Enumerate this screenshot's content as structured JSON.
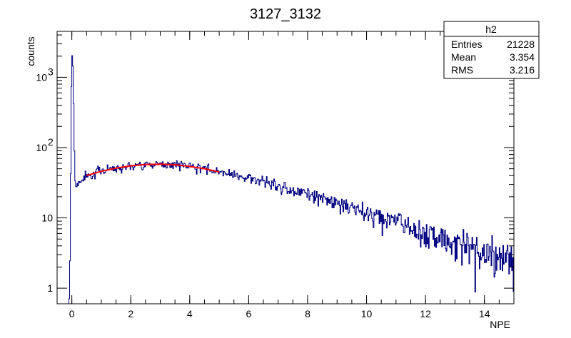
{
  "chart_data": {
    "type": "line",
    "title": "3127_3132",
    "xlabel": "NPE",
    "ylabel": "counts",
    "xlim": [
      -0.5,
      15.0
    ],
    "ylim": [
      0.6,
      4500
    ],
    "yscale": "log",
    "grid": false,
    "x_ticks": [
      0,
      2,
      4,
      6,
      8,
      10,
      12,
      14
    ],
    "y_ticks": [
      {
        "value": 1,
        "label": "1"
      },
      {
        "value": 10,
        "label": "10"
      },
      {
        "value": 100,
        "label": "10",
        "exp": "2"
      },
      {
        "value": 1000,
        "label": "10",
        "exp": "3"
      }
    ],
    "histogram": {
      "color": "#000080",
      "bin_width": 0.025,
      "peak": {
        "x": [
          -0.1,
          -0.075,
          -0.05,
          -0.025,
          0.0,
          0.025,
          0.05,
          0.075,
          0.1,
          0.125
        ],
        "y": [
          0.5,
          1,
          6,
          300,
          1800,
          2300,
          900,
          200,
          40,
          28
        ]
      },
      "model": {
        "x": [
          0.15,
          0.5,
          1,
          2,
          3,
          4,
          5,
          6,
          7,
          8,
          9,
          10,
          11,
          12,
          13,
          14,
          15
        ],
        "y": [
          30,
          40,
          48,
          56,
          58,
          55,
          47,
          37,
          29,
          22,
          16,
          12,
          9,
          6,
          4.5,
          3.2,
          2.4
        ]
      }
    },
    "fit": {
      "color": "#ff0000",
      "x": [
        0.5,
        1.0,
        1.5,
        2.0,
        2.5,
        3.0,
        3.5,
        4.0,
        4.5,
        5.0
      ],
      "y": [
        40,
        46,
        51,
        55,
        57.5,
        58,
        57,
        54,
        50,
        45
      ]
    },
    "stats_box": {
      "name": "h2",
      "rows": [
        {
          "label": "Entries",
          "value": "21228"
        },
        {
          "label": "Mean",
          "value": "3.354"
        },
        {
          "label": "RMS",
          "value": "3.216"
        }
      ]
    }
  }
}
